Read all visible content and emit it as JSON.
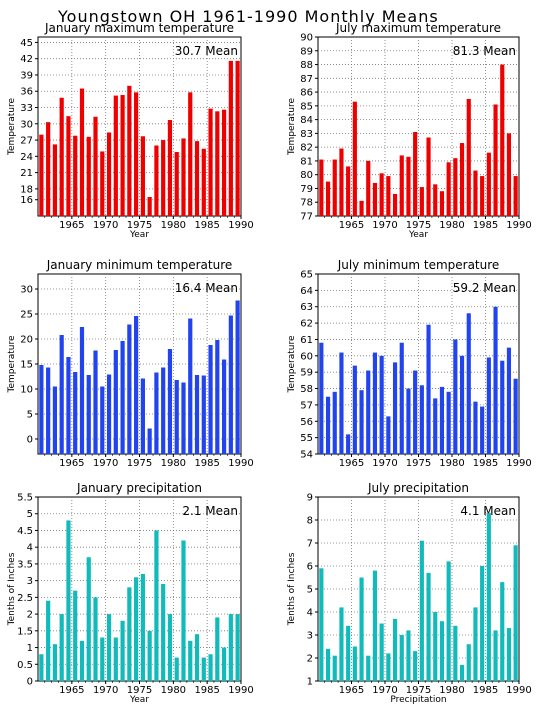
{
  "page": {
    "title": "Youngstown OH   1961-1990  Monthly Means"
  },
  "chart_data": [
    {
      "type": "bar",
      "title": "January maximum temperature",
      "ylabel": "Temperature",
      "xlabel": "Year",
      "mean_label": "30.7  Mean",
      "color": "#ee0000",
      "ylim": [
        13,
        46
      ],
      "yticks": [
        16,
        18,
        21,
        24,
        27,
        30,
        33,
        36,
        39,
        42,
        45
      ],
      "xticks": [
        1965,
        1970,
        1975,
        1980,
        1985,
        1990
      ],
      "x": [
        1961,
        1962,
        1963,
        1964,
        1965,
        1966,
        1967,
        1968,
        1969,
        1970,
        1971,
        1972,
        1973,
        1974,
        1975,
        1976,
        1977,
        1978,
        1979,
        1980,
        1981,
        1982,
        1983,
        1984,
        1985,
        1986,
        1987,
        1988,
        1989,
        1990
      ],
      "values": [
        28.0,
        30.3,
        26.2,
        34.8,
        31.4,
        27.8,
        36.5,
        27.6,
        31.3,
        24.9,
        28.4,
        35.2,
        35.3,
        37.0,
        35.8,
        27.7,
        16.5,
        26.0,
        27.0,
        30.7,
        24.8,
        27.3,
        35.8,
        26.8,
        25.4,
        32.8,
        32.3,
        32.6,
        41.6,
        41.6
      ]
    },
    {
      "type": "bar",
      "title": "July maximum temperature",
      "ylabel": "Temperature",
      "xlabel": "Year",
      "mean_label": "81.3  Mean",
      "color": "#ee0000",
      "ylim": [
        77,
        90
      ],
      "yticks": [
        77,
        78,
        79,
        80,
        81,
        82,
        83,
        84,
        85,
        86,
        87,
        88,
        89,
        90
      ],
      "xticks": [
        1965,
        1970,
        1975,
        1980,
        1985,
        1990
      ],
      "x": [
        1961,
        1962,
        1963,
        1964,
        1965,
        1966,
        1967,
        1968,
        1969,
        1970,
        1971,
        1972,
        1973,
        1974,
        1975,
        1976,
        1977,
        1978,
        1979,
        1980,
        1981,
        1982,
        1983,
        1984,
        1985,
        1986,
        1987,
        1988,
        1989,
        1990
      ],
      "values": [
        81.1,
        79.5,
        81.1,
        81.9,
        80.6,
        85.3,
        78.1,
        81.0,
        79.4,
        80.1,
        79.9,
        78.6,
        81.4,
        81.3,
        83.1,
        79.1,
        82.7,
        79.3,
        78.8,
        80.9,
        81.2,
        82.3,
        85.5,
        80.3,
        79.9,
        81.6,
        85.1,
        88.0,
        83.0,
        79.9
      ]
    },
    {
      "type": "bar",
      "title": "January minimum temperature",
      "ylabel": "Temperature",
      "xlabel": "",
      "mean_label": "16.4  Mean",
      "color": "#2244ee",
      "ylim": [
        -3,
        33
      ],
      "yticks": [
        0,
        5,
        10,
        15,
        20,
        25,
        30
      ],
      "xticks": [
        1965,
        1970,
        1975,
        1980,
        1985,
        1990
      ],
      "x": [
        1961,
        1962,
        1963,
        1964,
        1965,
        1966,
        1967,
        1968,
        1969,
        1970,
        1971,
        1972,
        1973,
        1974,
        1975,
        1976,
        1977,
        1978,
        1979,
        1980,
        1981,
        1982,
        1983,
        1984,
        1985,
        1986,
        1987,
        1988,
        1989,
        1990
      ],
      "values": [
        14.8,
        14.3,
        10.5,
        20.8,
        16.4,
        13.4,
        22.4,
        12.8,
        17.7,
        10.5,
        12.9,
        17.8,
        19.6,
        22.9,
        24.6,
        12.1,
        2.1,
        13.3,
        14.3,
        18.0,
        11.8,
        11.3,
        24.1,
        12.8,
        12.7,
        18.8,
        19.8,
        15.9,
        24.7,
        27.7
      ]
    },
    {
      "type": "bar",
      "title": "July minimum temperature",
      "ylabel": "Temperature",
      "xlabel": "",
      "mean_label": "59.2  Mean",
      "color": "#2244ee",
      "ylim": [
        54,
        65
      ],
      "yticks": [
        54,
        55,
        56,
        57,
        58,
        59,
        60,
        61,
        62,
        63,
        64,
        65
      ],
      "xticks": [
        1965,
        1970,
        1975,
        1980,
        1985,
        1990
      ],
      "x": [
        1961,
        1962,
        1963,
        1964,
        1965,
        1966,
        1967,
        1968,
        1969,
        1970,
        1971,
        1972,
        1973,
        1974,
        1975,
        1976,
        1977,
        1978,
        1979,
        1980,
        1981,
        1982,
        1983,
        1984,
        1985,
        1986,
        1987,
        1988,
        1989,
        1990
      ],
      "values": [
        60.8,
        57.5,
        57.8,
        60.2,
        55.2,
        59.4,
        57.9,
        59.1,
        60.2,
        60.0,
        56.3,
        59.6,
        60.8,
        58.0,
        59.1,
        58.2,
        61.9,
        57.4,
        58.1,
        57.8,
        61.0,
        60.0,
        62.6,
        57.2,
        56.9,
        59.9,
        63.0,
        59.7,
        60.5,
        58.6
      ]
    },
    {
      "type": "bar",
      "title": "January precipitation",
      "ylabel": "Tenths of Inches",
      "xlabel": "Year",
      "mean_label": "2.1  Mean",
      "color": "#11bbbb",
      "ylim": [
        0,
        5.5
      ],
      "yticks": [
        0,
        0.5,
        1,
        1.5,
        2,
        2.5,
        3,
        3.5,
        4,
        4.5,
        5,
        5.5
      ],
      "xticks": [
        1965,
        1970,
        1975,
        1980,
        1985,
        1990
      ],
      "x": [
        1961,
        1962,
        1963,
        1964,
        1965,
        1966,
        1967,
        1968,
        1969,
        1970,
        1971,
        1972,
        1973,
        1974,
        1975,
        1976,
        1977,
        1978,
        1979,
        1980,
        1981,
        1982,
        1983,
        1984,
        1985,
        1986,
        1987,
        1988,
        1989,
        1990
      ],
      "values": [
        0.8,
        2.4,
        1.1,
        2.0,
        4.8,
        2.7,
        1.2,
        3.7,
        2.5,
        1.3,
        2.0,
        1.3,
        1.8,
        2.8,
        3.1,
        3.2,
        1.5,
        4.5,
        2.9,
        2.0,
        0.7,
        4.2,
        1.2,
        1.4,
        0.7,
        0.8,
        1.9,
        1.0,
        2.0,
        2.0
      ]
    },
    {
      "type": "bar",
      "title": "July precipitation",
      "ylabel": "Tenths of Inches",
      "xlabel": "Precipitation",
      "mean_label": "4.1  Mean",
      "color": "#11bbbb",
      "ylim": [
        1,
        9
      ],
      "yticks": [
        1,
        2,
        3,
        4,
        5,
        6,
        7,
        8,
        9
      ],
      "xticks": [
        1965,
        1970,
        1975,
        1980,
        1985,
        1990
      ],
      "x": [
        1961,
        1962,
        1963,
        1964,
        1965,
        1966,
        1967,
        1968,
        1969,
        1970,
        1971,
        1972,
        1973,
        1974,
        1975,
        1976,
        1977,
        1978,
        1979,
        1980,
        1981,
        1982,
        1983,
        1984,
        1985,
        1986,
        1987,
        1988,
        1989,
        1990
      ],
      "values": [
        5.9,
        2.4,
        2.1,
        4.2,
        3.4,
        2.5,
        5.5,
        2.1,
        5.8,
        3.5,
        2.2,
        3.7,
        3.0,
        3.2,
        2.3,
        7.1,
        5.7,
        4.0,
        3.6,
        6.2,
        3.4,
        1.7,
        2.6,
        4.2,
        6.0,
        8.3,
        3.2,
        5.3,
        3.3,
        6.9
      ]
    }
  ]
}
